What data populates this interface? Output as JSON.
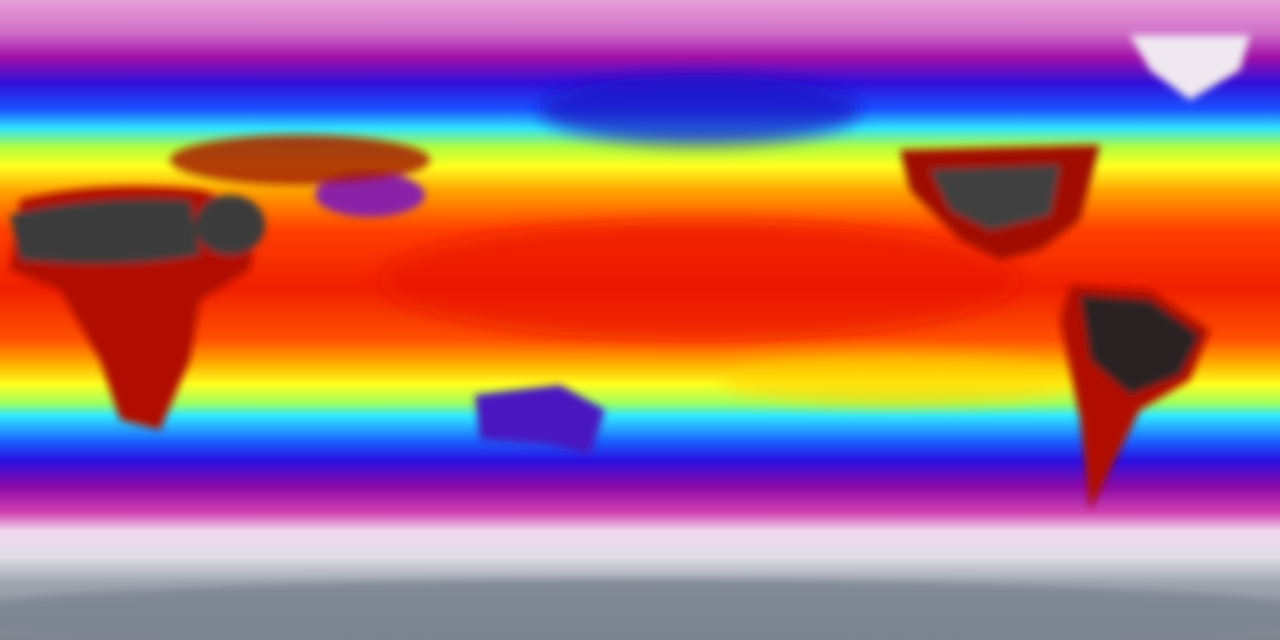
{
  "map": {
    "projection": "equirectangular",
    "colormap": [
      "#8a93a0",
      "#e8e4ec",
      "#d040b0",
      "#8a0aa8",
      "#2a10e0",
      "#1a60ff",
      "#30e8ff",
      "#a8ff40",
      "#ffff20",
      "#ffb000",
      "#ff4000",
      "#d00000",
      "#301010",
      "#4a4a4a",
      "#f0f0f0"
    ]
  }
}
